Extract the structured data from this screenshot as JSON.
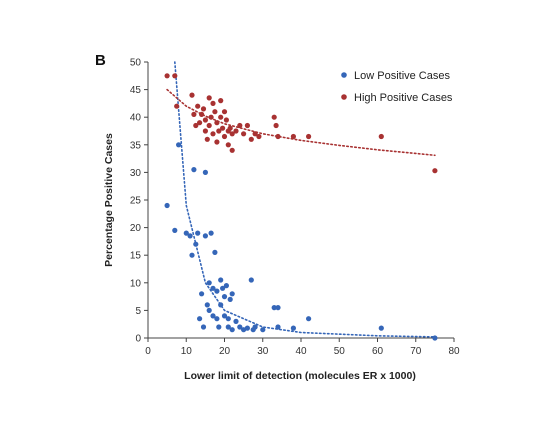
{
  "chart_data": {
    "type": "scatter",
    "panel_label": "B",
    "title": "",
    "xlabel": "Lower limit  of detection (molecules ER x 1000)",
    "ylabel": "Percentage Positive Cases",
    "xlim": [
      0,
      80
    ],
    "ylim": [
      0,
      50
    ],
    "xticks": [
      "0",
      "10",
      "20",
      "30",
      "40",
      "50",
      "60",
      "70",
      "80"
    ],
    "yticks": [
      "0",
      "5",
      "10",
      "15",
      "20",
      "25",
      "30",
      "35",
      "40",
      "45",
      "50"
    ],
    "grid": false,
    "legend_position": "top-right",
    "series": [
      {
        "name": "Low Positive Cases",
        "color": "#3566b8",
        "points": [
          [
            5,
            24
          ],
          [
            7,
            19.5
          ],
          [
            8,
            35
          ],
          [
            10,
            19
          ],
          [
            11,
            18.5
          ],
          [
            11.5,
            15
          ],
          [
            12,
            30.5
          ],
          [
            12.5,
            17
          ],
          [
            13,
            19
          ],
          [
            13.5,
            3.5
          ],
          [
            14,
            8
          ],
          [
            14.5,
            2
          ],
          [
            15,
            30
          ],
          [
            15,
            18.5
          ],
          [
            15.5,
            6
          ],
          [
            16,
            10
          ],
          [
            16,
            5
          ],
          [
            16.5,
            19
          ],
          [
            17,
            9
          ],
          [
            17,
            4
          ],
          [
            17.5,
            15.5
          ],
          [
            18,
            8.5
          ],
          [
            18,
            3.5
          ],
          [
            18.5,
            2
          ],
          [
            19,
            10.5
          ],
          [
            19,
            6
          ],
          [
            19.5,
            9
          ],
          [
            20,
            7.5
          ],
          [
            20,
            4
          ],
          [
            20.5,
            9.5
          ],
          [
            21,
            3.5
          ],
          [
            21,
            2
          ],
          [
            21.5,
            7
          ],
          [
            22,
            8
          ],
          [
            22,
            1.5
          ],
          [
            23,
            3
          ],
          [
            24,
            2
          ],
          [
            25,
            1.5
          ],
          [
            26,
            1.8
          ],
          [
            27,
            10.5
          ],
          [
            27.5,
            1.5
          ],
          [
            28,
            2
          ],
          [
            30,
            1.5
          ],
          [
            33,
            5.5
          ],
          [
            34,
            5.5
          ],
          [
            34,
            2
          ],
          [
            38,
            1.8
          ],
          [
            42,
            3.5
          ],
          [
            61,
            1.8
          ],
          [
            75,
            0
          ]
        ],
        "trendline": {
          "label": "",
          "style": "dotted",
          "points": [
            [
              7,
              50
            ],
            [
              10,
              24
            ],
            [
              15,
              10
            ],
            [
              20,
              5
            ],
            [
              30,
              2
            ],
            [
              40,
              1
            ],
            [
              60,
              0.4
            ],
            [
              75,
              0.2
            ]
          ]
        }
      },
      {
        "name": "High Positive Cases",
        "color": "#a83232",
        "points": [
          [
            5,
            47.5
          ],
          [
            7,
            47.5
          ],
          [
            7.5,
            42
          ],
          [
            11.5,
            44
          ],
          [
            12,
            40.5
          ],
          [
            12.5,
            38.5
          ],
          [
            13,
            42
          ],
          [
            13.5,
            39
          ],
          [
            14,
            40.5
          ],
          [
            14.5,
            41.5
          ],
          [
            15,
            37.5
          ],
          [
            15,
            39.5
          ],
          [
            15.5,
            36
          ],
          [
            16,
            43.5
          ],
          [
            16,
            38.5
          ],
          [
            16.5,
            40
          ],
          [
            17,
            37
          ],
          [
            17,
            42.5
          ],
          [
            17.5,
            41
          ],
          [
            18,
            39
          ],
          [
            18,
            35.5
          ],
          [
            18.5,
            37.5
          ],
          [
            19,
            43
          ],
          [
            19,
            40
          ],
          [
            19.5,
            38
          ],
          [
            20,
            41
          ],
          [
            20,
            36.5
          ],
          [
            20.5,
            39.5
          ],
          [
            21,
            37.5
          ],
          [
            21,
            35
          ],
          [
            21.5,
            38
          ],
          [
            22,
            37
          ],
          [
            22,
            34
          ],
          [
            23,
            37.5
          ],
          [
            24,
            38.5
          ],
          [
            25,
            37
          ],
          [
            26,
            38.5
          ],
          [
            27,
            36
          ],
          [
            28,
            37
          ],
          [
            29,
            36.5
          ],
          [
            33,
            40
          ],
          [
            33.5,
            38.5
          ],
          [
            34,
            36.5
          ],
          [
            38,
            36.5
          ],
          [
            42,
            36.5
          ],
          [
            61,
            36.5
          ],
          [
            75,
            30.3
          ]
        ],
        "trendline": {
          "label": "",
          "style": "dotted",
          "points": [
            [
              5,
              45
            ],
            [
              10,
              42
            ],
            [
              15,
              40.2
            ],
            [
              20,
              38.8
            ],
            [
              30,
              37
            ],
            [
              40,
              35.8
            ],
            [
              50,
              34.9
            ],
            [
              60,
              34.1
            ],
            [
              75,
              33.1
            ]
          ]
        }
      }
    ]
  }
}
